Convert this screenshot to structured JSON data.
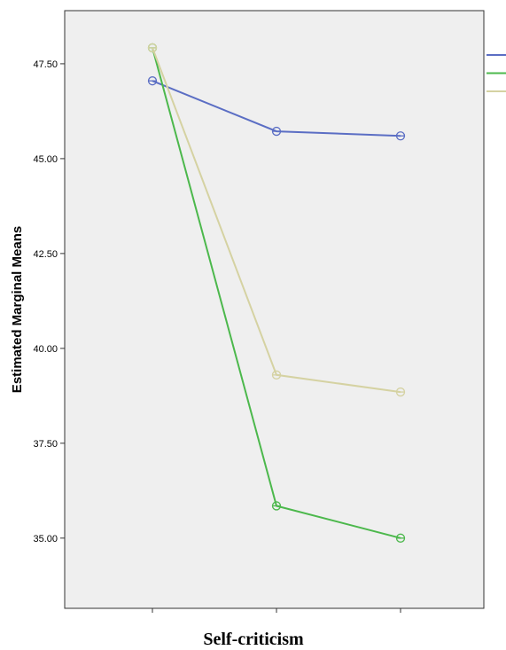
{
  "chart_data": {
    "type": "line",
    "xlabel": "Self-criticism",
    "ylabel": "Estimated Marginal Means",
    "x_tick_count": 3,
    "yticks": [
      "35.00",
      "37.50",
      "40.00",
      "42.50",
      "45.00",
      "47.50"
    ],
    "ytick_values": [
      35.0,
      37.5,
      40.0,
      42.5,
      45.0,
      47.5
    ],
    "ylim": [
      33.15,
      48.9
    ],
    "grid": false,
    "legend_position": "right",
    "series": [
      {
        "color": "#5B6EC4",
        "values": [
          47.05,
          45.72,
          45.6
        ]
      },
      {
        "color": "#4CB84C",
        "values": [
          47.92,
          35.85,
          35.0
        ]
      },
      {
        "color": "#D5D2A2",
        "values": [
          47.92,
          39.3,
          38.85
        ]
      }
    ]
  }
}
